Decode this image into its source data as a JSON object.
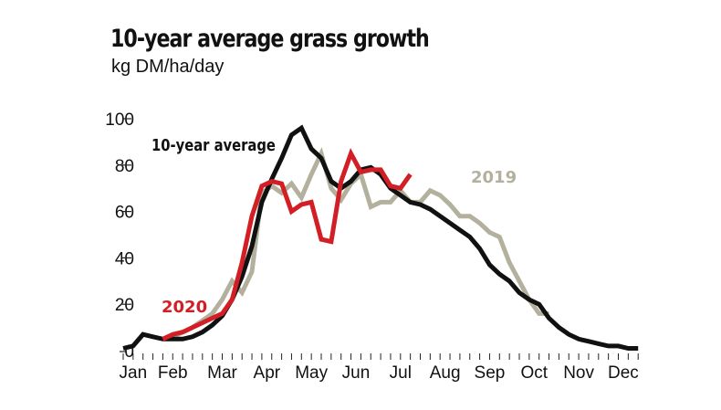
{
  "header": {
    "title": "10-year average grass growth",
    "subtitle": "kg DM/ha/day"
  },
  "chart_data": {
    "type": "line",
    "title": "10-year average grass growth",
    "subtitle": "kg DM/ha/day",
    "xlabel": "",
    "ylabel": "kg DM/ha/day",
    "ylim": [
      0,
      100
    ],
    "yticks": [
      "0",
      "20",
      "40",
      "60",
      "80",
      "100"
    ],
    "x_unit": "week of year",
    "xlim": [
      0,
      52
    ],
    "month_labels": [
      "Jan",
      "Feb",
      "Mar",
      "Apr",
      "May",
      "Jun",
      "Jul",
      "Aug",
      "Sep",
      "Oct",
      "Nov",
      "Dec"
    ],
    "month_label_weeks": [
      1,
      5,
      10,
      14.5,
      19,
      23.5,
      28,
      32.5,
      37,
      41.5,
      46,
      50.5
    ],
    "grid": false,
    "series": [
      {
        "name": "10-year average",
        "label": "10-year average",
        "color": "#111111",
        "start_week": 0,
        "values": [
          1,
          2,
          7,
          6,
          5,
          5,
          5,
          6,
          8,
          11,
          15,
          22,
          32,
          45,
          64,
          74,
          83,
          93,
          96,
          87,
          83,
          73,
          70,
          73,
          78,
          79,
          76,
          70,
          67,
          64,
          63,
          61,
          58,
          55,
          52,
          49,
          44,
          37,
          33,
          30,
          25,
          22,
          20,
          14,
          10,
          7,
          5,
          4,
          3,
          2,
          2,
          1,
          1
        ]
      },
      {
        "name": "2019",
        "label": "2019",
        "color": "#b3b09d",
        "start_week": 4,
        "values": [
          5,
          6,
          8,
          10,
          13,
          16,
          22,
          30,
          25,
          34,
          68,
          71,
          68,
          72,
          66,
          76,
          85,
          70,
          65,
          72,
          76,
          62,
          64,
          64,
          69,
          64,
          64,
          69,
          67,
          63,
          58,
          58,
          55,
          51,
          49,
          38,
          30,
          22,
          16,
          16
        ]
      },
      {
        "name": "2020",
        "label": "2020",
        "color": "#d21f26",
        "start_week": 4,
        "values": [
          5,
          7,
          8,
          10,
          12,
          14,
          16,
          22,
          38,
          58,
          71,
          73,
          72,
          60,
          63,
          64,
          48,
          47,
          73,
          85,
          77,
          78,
          78,
          71,
          70,
          76
        ]
      }
    ]
  }
}
